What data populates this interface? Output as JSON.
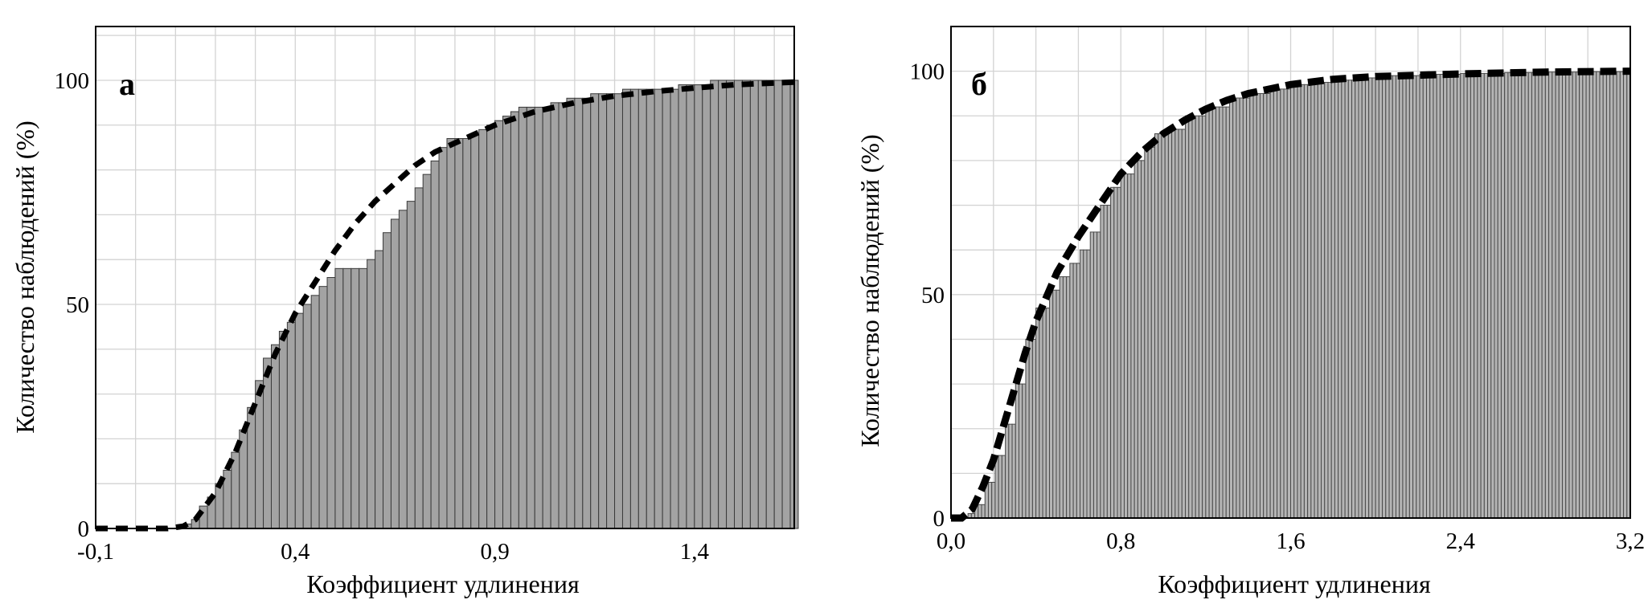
{
  "chart_data": [
    {
      "type": "bar",
      "panel_label": "а",
      "xlabel": "Коэффициент удлинения",
      "ylabel": "Количество наблюдений (%)",
      "xlim": [
        -0.1,
        1.65
      ],
      "ylim": [
        0,
        112
      ],
      "x_ticks": [
        {
          "value": -0.1,
          "label": "-0,1"
        },
        {
          "value": 0.4,
          "label": "0,4"
        },
        {
          "value": 0.9,
          "label": "0,9"
        },
        {
          "value": 1.4,
          "label": "1,4"
        }
      ],
      "y_ticks": [
        {
          "value": 0,
          "label": "0"
        },
        {
          "value": 50,
          "label": "50"
        },
        {
          "value": 100,
          "label": "100"
        }
      ],
      "grid": true,
      "x_grid_step": 0.1,
      "y_grid_step": 10,
      "bar_width": 0.02,
      "bar_color": "#a3a3a3",
      "bar_edge_color": "#3a3a3a",
      "histogram_points": [
        [
          0.1,
          0
        ],
        [
          0.12,
          1
        ],
        [
          0.14,
          2
        ],
        [
          0.16,
          5
        ],
        [
          0.18,
          7
        ],
        [
          0.2,
          10
        ],
        [
          0.22,
          13
        ],
        [
          0.24,
          17
        ],
        [
          0.26,
          22
        ],
        [
          0.28,
          27
        ],
        [
          0.3,
          33
        ],
        [
          0.32,
          38
        ],
        [
          0.34,
          41
        ],
        [
          0.36,
          44
        ],
        [
          0.38,
          46
        ],
        [
          0.4,
          48
        ],
        [
          0.42,
          50
        ],
        [
          0.44,
          52
        ],
        [
          0.46,
          54
        ],
        [
          0.48,
          56
        ],
        [
          0.5,
          58
        ],
        [
          0.52,
          58
        ],
        [
          0.54,
          58
        ],
        [
          0.56,
          58
        ],
        [
          0.58,
          60
        ],
        [
          0.6,
          62
        ],
        [
          0.62,
          66
        ],
        [
          0.64,
          69
        ],
        [
          0.66,
          71
        ],
        [
          0.68,
          73
        ],
        [
          0.7,
          76
        ],
        [
          0.72,
          79
        ],
        [
          0.74,
          82
        ],
        [
          0.76,
          85
        ],
        [
          0.78,
          87
        ],
        [
          0.8,
          87
        ],
        [
          0.82,
          87
        ],
        [
          0.84,
          88
        ],
        [
          0.86,
          89
        ],
        [
          0.88,
          90
        ],
        [
          0.9,
          91
        ],
        [
          0.92,
          92
        ],
        [
          0.94,
          93
        ],
        [
          0.96,
          94
        ],
        [
          0.98,
          94
        ],
        [
          1.0,
          94
        ],
        [
          1.02,
          94
        ],
        [
          1.04,
          95
        ],
        [
          1.06,
          95
        ],
        [
          1.08,
          96
        ],
        [
          1.1,
          96
        ],
        [
          1.12,
          96
        ],
        [
          1.14,
          97
        ],
        [
          1.16,
          97
        ],
        [
          1.18,
          97
        ],
        [
          1.2,
          97
        ],
        [
          1.22,
          98
        ],
        [
          1.24,
          98
        ],
        [
          1.26,
          98
        ],
        [
          1.28,
          98
        ],
        [
          1.3,
          98
        ],
        [
          1.32,
          98
        ],
        [
          1.34,
          98
        ],
        [
          1.36,
          99
        ],
        [
          1.38,
          99
        ],
        [
          1.4,
          99
        ],
        [
          1.42,
          99
        ],
        [
          1.44,
          100
        ],
        [
          1.46,
          100
        ],
        [
          1.48,
          100
        ],
        [
          1.5,
          100
        ],
        [
          1.52,
          100
        ],
        [
          1.54,
          100
        ],
        [
          1.56,
          100
        ],
        [
          1.58,
          100
        ],
        [
          1.6,
          100
        ],
        [
          1.62,
          100
        ],
        [
          1.64,
          100
        ]
      ],
      "fitted_curve": [
        [
          -0.1,
          0
        ],
        [
          0.0,
          0
        ],
        [
          0.08,
          0
        ],
        [
          0.12,
          0.5
        ],
        [
          0.15,
          2
        ],
        [
          0.2,
          8
        ],
        [
          0.25,
          17
        ],
        [
          0.3,
          28
        ],
        [
          0.35,
          39
        ],
        [
          0.4,
          48
        ],
        [
          0.45,
          55
        ],
        [
          0.5,
          62
        ],
        [
          0.55,
          68
        ],
        [
          0.6,
          73
        ],
        [
          0.65,
          77
        ],
        [
          0.7,
          81
        ],
        [
          0.75,
          84
        ],
        [
          0.8,
          86
        ],
        [
          0.9,
          90
        ],
        [
          1.0,
          93
        ],
        [
          1.1,
          95
        ],
        [
          1.2,
          96.5
        ],
        [
          1.3,
          97.5
        ],
        [
          1.4,
          98.3
        ],
        [
          1.5,
          99
        ],
        [
          1.6,
          99.4
        ],
        [
          1.65,
          99.6
        ]
      ]
    },
    {
      "type": "bar",
      "panel_label": "б",
      "xlabel": "Коэффициент удлинения",
      "ylabel": "Количество наблюдений (%)",
      "xlim": [
        0.0,
        3.2
      ],
      "ylim": [
        0,
        110
      ],
      "x_ticks": [
        {
          "value": 0.0,
          "label": "0,0"
        },
        {
          "value": 0.8,
          "label": "0,8"
        },
        {
          "value": 1.6,
          "label": "1,6"
        },
        {
          "value": 2.4,
          "label": "2,4"
        },
        {
          "value": 3.2,
          "label": "3,2"
        }
      ],
      "y_ticks": [
        {
          "value": 0,
          "label": "0"
        },
        {
          "value": 50,
          "label": "50"
        },
        {
          "value": 100,
          "label": "100"
        }
      ],
      "grid": true,
      "x_grid_step": 0.2,
      "y_grid_step": 10,
      "bar_width": 0.016,
      "bar_color": "#b5b5b5",
      "bar_edge_color": "#4a4a4a",
      "histogram_points": [
        [
          0.0,
          0
        ],
        [
          0.05,
          0
        ],
        [
          0.08,
          1
        ],
        [
          0.1,
          3
        ],
        [
          0.15,
          8
        ],
        [
          0.2,
          14
        ],
        [
          0.25,
          21
        ],
        [
          0.3,
          30
        ],
        [
          0.35,
          40
        ],
        [
          0.4,
          47
        ],
        [
          0.45,
          51
        ],
        [
          0.5,
          54
        ],
        [
          0.55,
          57
        ],
        [
          0.6,
          60
        ],
        [
          0.65,
          64
        ],
        [
          0.7,
          70
        ],
        [
          0.75,
          74
        ],
        [
          0.8,
          77
        ],
        [
          0.85,
          80
        ],
        [
          0.9,
          83
        ],
        [
          0.95,
          86
        ],
        [
          1.0,
          87
        ],
        [
          1.1,
          90
        ],
        [
          1.2,
          92
        ],
        [
          1.3,
          94
        ],
        [
          1.4,
          95
        ],
        [
          1.5,
          96
        ],
        [
          1.6,
          97
        ],
        [
          1.7,
          97.5
        ],
        [
          1.8,
          98
        ],
        [
          1.9,
          98.5
        ],
        [
          2.0,
          99
        ],
        [
          2.2,
          99.3
        ],
        [
          2.4,
          99.5
        ],
        [
          2.6,
          99.7
        ],
        [
          2.8,
          99.8
        ],
        [
          3.0,
          99.9
        ],
        [
          3.2,
          100
        ]
      ],
      "fitted_curve": [
        [
          0.0,
          0
        ],
        [
          0.05,
          0
        ],
        [
          0.1,
          2
        ],
        [
          0.15,
          7
        ],
        [
          0.2,
          13
        ],
        [
          0.25,
          21
        ],
        [
          0.3,
          29
        ],
        [
          0.35,
          37
        ],
        [
          0.4,
          44
        ],
        [
          0.5,
          55
        ],
        [
          0.6,
          63
        ],
        [
          0.7,
          70
        ],
        [
          0.8,
          77
        ],
        [
          0.9,
          82
        ],
        [
          1.0,
          86
        ],
        [
          1.1,
          89
        ],
        [
          1.2,
          91.5
        ],
        [
          1.3,
          93.5
        ],
        [
          1.4,
          95
        ],
        [
          1.6,
          97
        ],
        [
          1.8,
          98.2
        ],
        [
          2.0,
          98.8
        ],
        [
          2.4,
          99.4
        ],
        [
          2.8,
          99.8
        ],
        [
          3.2,
          100
        ]
      ]
    }
  ],
  "colors": {
    "grid": "#d3d3d3",
    "frame": "#000000",
    "curve": "#000000"
  }
}
